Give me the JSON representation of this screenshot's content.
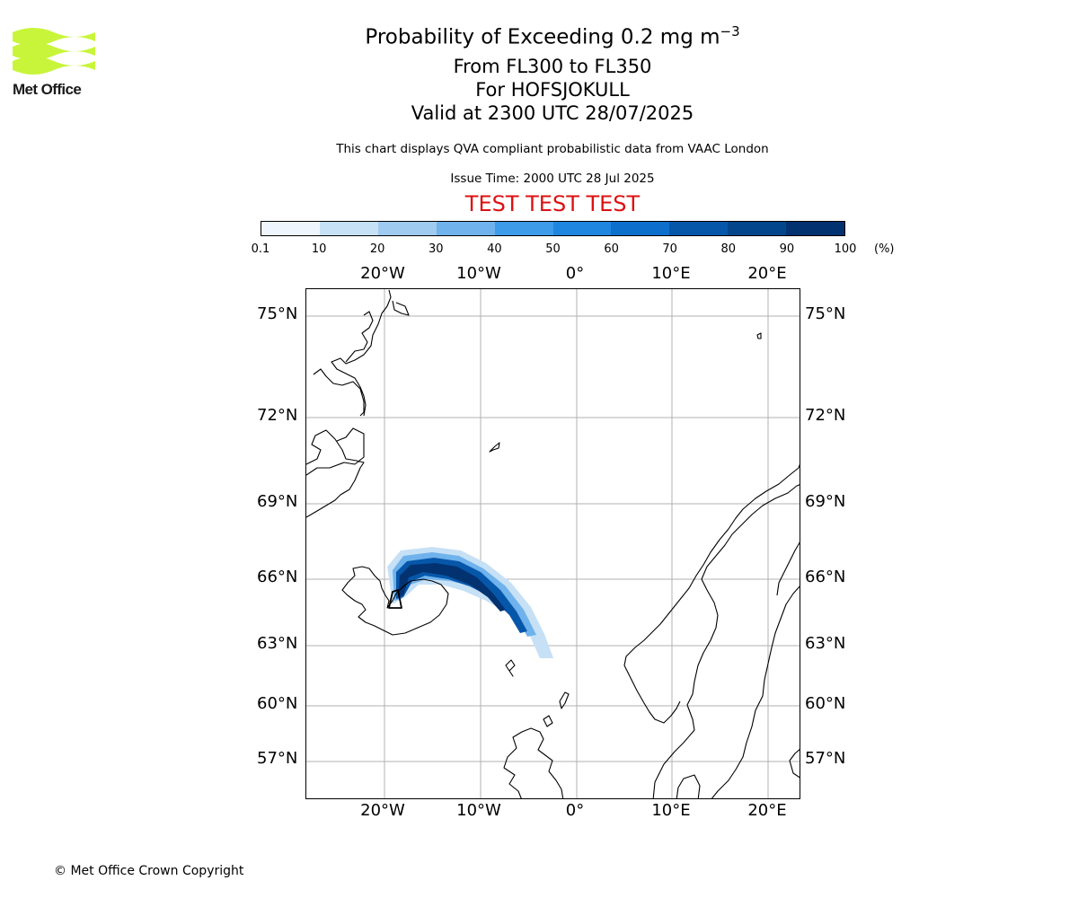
{
  "logo": {
    "text": "Met Office",
    "accent": "#c8f53a"
  },
  "title": {
    "main": "Probability of Exceeding 0.2 mg m",
    "superscript": "−3",
    "levels": "From FL300 to FL350",
    "volcano": "For HOFSJOKULL",
    "valid": "Valid at 2300 UTC 28/07/2025"
  },
  "subtitle": "This chart displays QVA compliant probabilistic data from VAAC London",
  "issue_time": "Issue Time: 2000 UTC 28 Jul 2025",
  "test_banner": "TEST TEST TEST",
  "colorbar": {
    "labels": [
      "0.1",
      "10",
      "20",
      "30",
      "40",
      "50",
      "60",
      "70",
      "80",
      "90",
      "100"
    ],
    "colors": [
      "#eef5fc",
      "#c6e0f6",
      "#9fcbf1",
      "#6fb2ec",
      "#3e9bea",
      "#1f86e0",
      "#0d6fcc",
      "#0657aa",
      "#04468c",
      "#023270"
    ],
    "unit": "(%)"
  },
  "map": {
    "lon_labels": [
      "20°W",
      "10°W",
      "0°",
      "10°E",
      "20°E"
    ],
    "lat_labels": [
      "75°N",
      "72°N",
      "69°N",
      "66°N",
      "63°N",
      "60°N",
      "57°N"
    ],
    "coast_color": "#000000",
    "grid_color": "#b0b0b0"
  },
  "copyright": "© Met Office Crown Copyright"
}
